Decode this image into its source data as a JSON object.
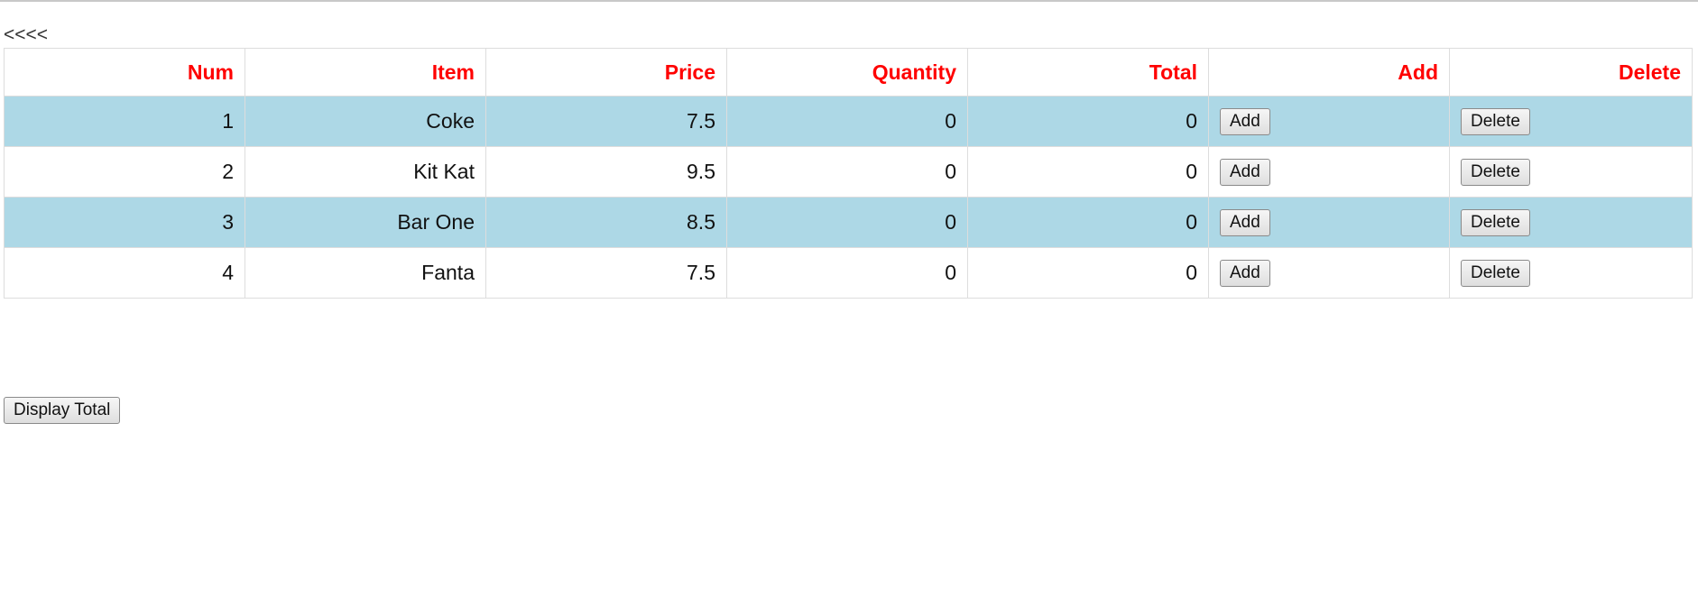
{
  "nav": {
    "back_label": "<<<<"
  },
  "table": {
    "headers": [
      "Num",
      "Item",
      "Price",
      "Quantity",
      "Total",
      "Add",
      "Delete"
    ],
    "rows": [
      {
        "num": "1",
        "item": "Coke",
        "price": "7.5",
        "quantity": "0",
        "total": "0",
        "add_label": "Add",
        "delete_label": "Delete"
      },
      {
        "num": "2",
        "item": "Kit Kat",
        "price": "9.5",
        "quantity": "0",
        "total": "0",
        "add_label": "Add",
        "delete_label": "Delete"
      },
      {
        "num": "3",
        "item": "Bar One",
        "price": "8.5",
        "quantity": "0",
        "total": "0",
        "add_label": "Add",
        "delete_label": "Delete"
      },
      {
        "num": "4",
        "item": "Fanta",
        "price": "7.5",
        "quantity": "0",
        "total": "0",
        "add_label": "Add",
        "delete_label": "Delete"
      }
    ]
  },
  "actions": {
    "display_total_label": "Display Total"
  },
  "colors": {
    "header_text": "#ff0000",
    "shaded_row": "#add8e6"
  }
}
